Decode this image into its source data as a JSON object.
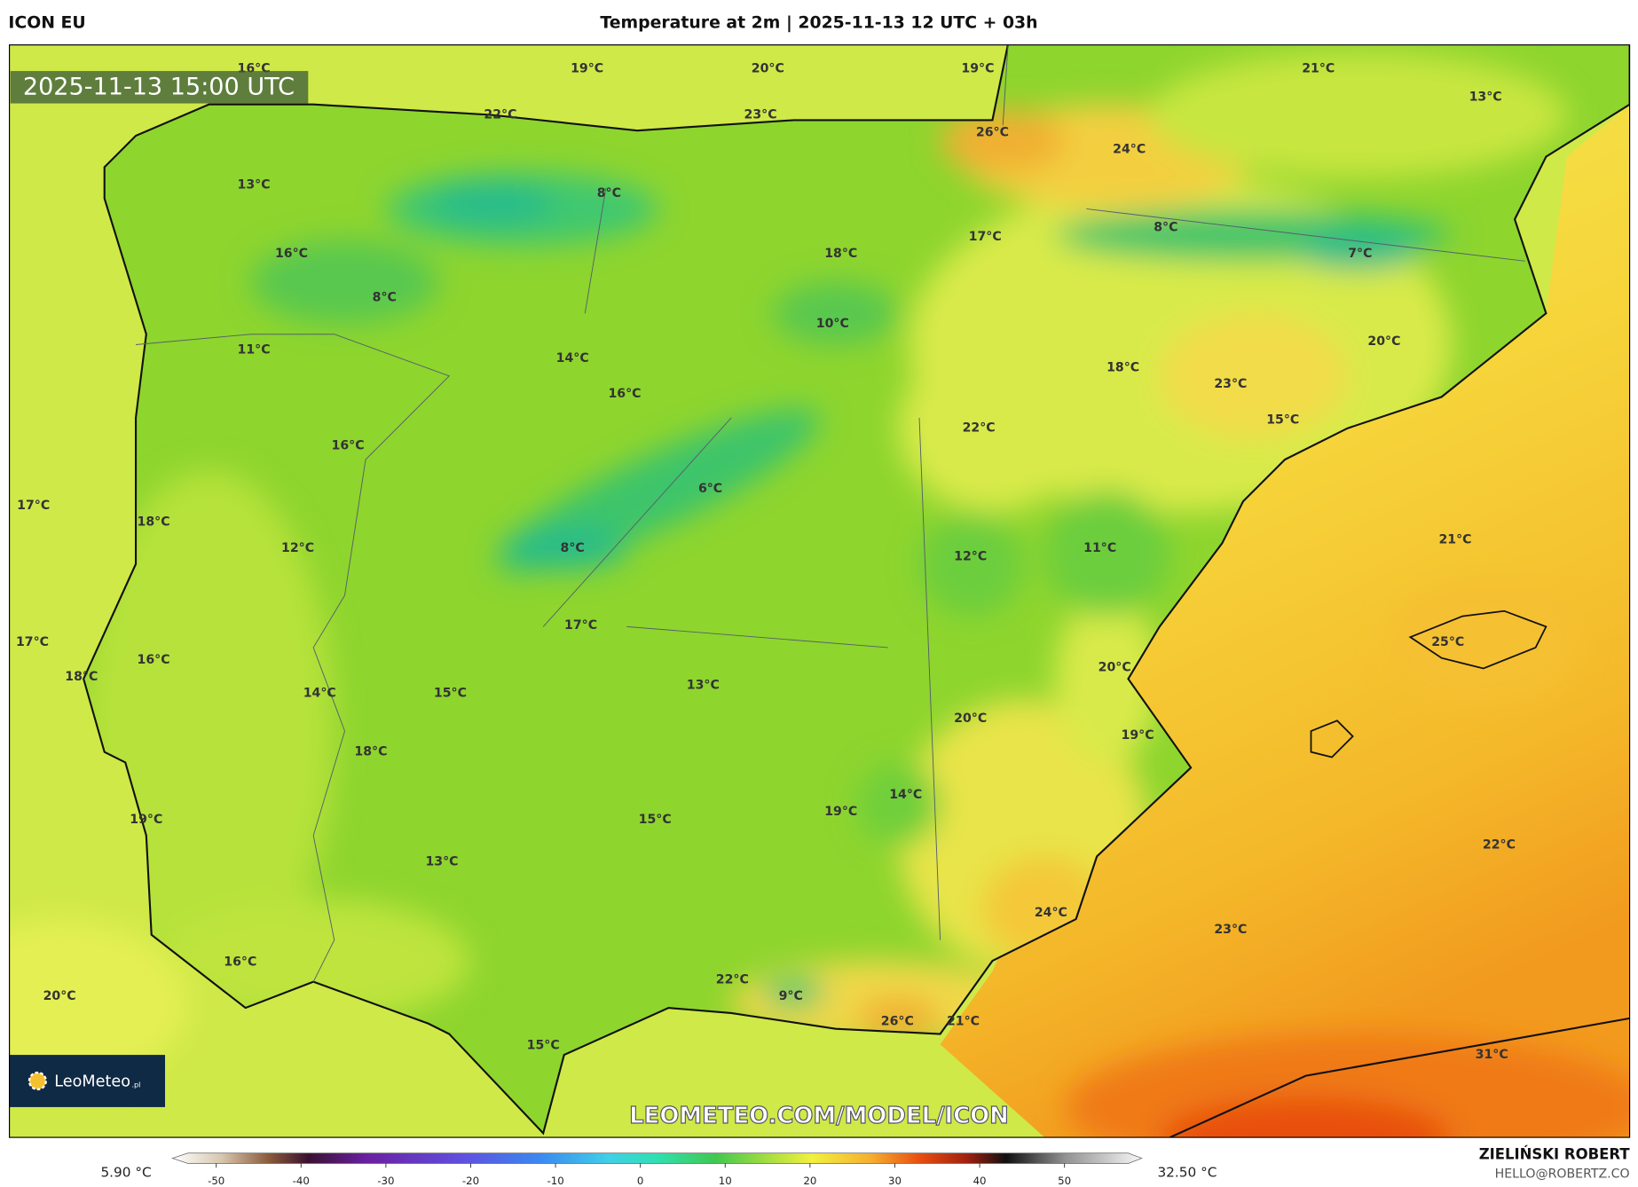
{
  "header": {
    "model": "ICON EU",
    "title": "Temperature at 2m | 2025-11-13 12 UTC + 03h"
  },
  "timestamp": "2025-11-13 15:00 UTC",
  "watermark": "LEOMETEO.COM/MODEL/ICON",
  "logo": {
    "name": "LeoMeteo",
    "suffix": ".pl"
  },
  "author": {
    "name": "ZIELIŃSKI ROBERT",
    "email": "HELLO@ROBERTZ.CO"
  },
  "colorbar": {
    "min_label": "5.90 °C",
    "max_label": "32.50 °C",
    "ticks": [
      -50,
      -40,
      -30,
      -20,
      -10,
      0,
      10,
      20,
      30,
      40,
      50
    ]
  },
  "map_labels": [
    "16°C",
    "19°C",
    "20°C",
    "19°C",
    "21°C",
    "13°C",
    "22°C",
    "23°C",
    "26°C",
    "24°C",
    "13°C",
    "8°C",
    "8°C",
    "17°C",
    "18°C",
    "7°C",
    "16°C",
    "8°C",
    "10°C",
    "20°C",
    "11°C",
    "14°C",
    "18°C",
    "23°C",
    "16°C",
    "15°C",
    "22°C",
    "16°C",
    "17°C",
    "6°C",
    "18°C",
    "21°C",
    "12°C",
    "8°C",
    "12°C",
    "11°C",
    "17°C",
    "17°C",
    "25°C",
    "16°C",
    "20°C",
    "18°C",
    "13°C",
    "14°C",
    "15°C",
    "20°C",
    "19°C",
    "18°C",
    "14°C",
    "19°C",
    "15°C",
    "19°C",
    "22°C",
    "13°C",
    "24°C",
    "23°C",
    "16°C",
    "22°C",
    "9°C",
    "20°C",
    "26°C",
    "21°C",
    "15°C",
    "31°C"
  ]
}
